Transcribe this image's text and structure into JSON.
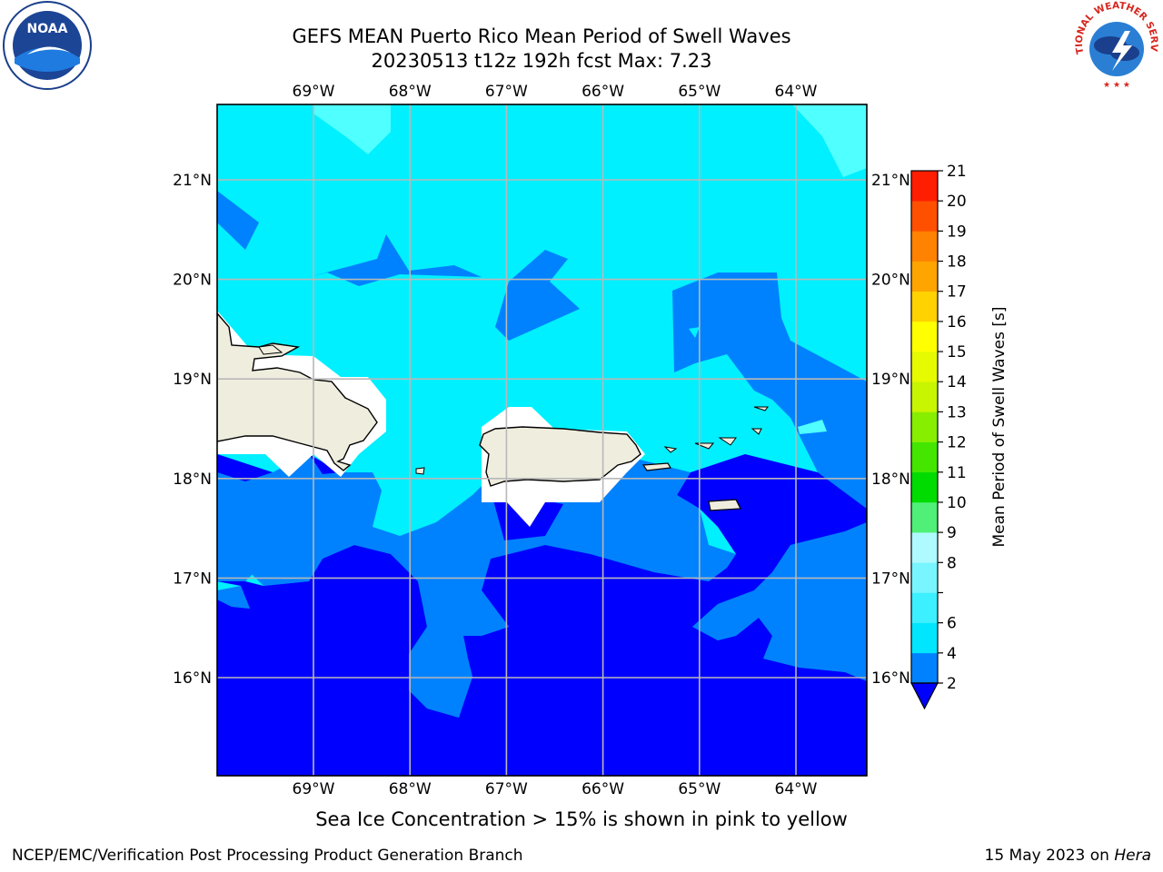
{
  "header": {
    "title_line1": "GEFS MEAN Puerto Rico Mean Period of Swell Waves",
    "title_line2": "20230513 t12z 192h fcst   Max: 7.23"
  },
  "logos": {
    "left": {
      "name": "noaa-logo",
      "text": "NOAA"
    },
    "right": {
      "name": "nws-logo",
      "text": "NATIONAL WEATHER SERVICE"
    }
  },
  "map": {
    "lon_ticks": [
      "69°W",
      "68°W",
      "67°W",
      "66°W",
      "65°W",
      "64°W"
    ],
    "lat_ticks": [
      "21°N",
      "20°N",
      "19°N",
      "18°N",
      "17°N",
      "16°N"
    ],
    "land_color": "#efedde",
    "grid_color": "#b8b8b8"
  },
  "colorbar": {
    "label": "Mean Period of Swell Waves [s]",
    "levels": [
      "2",
      "4",
      "6",
      "7",
      "8",
      "9",
      "10",
      "11",
      "12",
      "13",
      "14",
      "15",
      "16",
      "17",
      "18",
      "19",
      "20",
      "21"
    ],
    "visible_labels": [
      "2",
      "4",
      "6",
      "8",
      "9",
      "10",
      "11",
      "12",
      "13",
      "14",
      "15",
      "16",
      "17",
      "18",
      "19",
      "20",
      "21"
    ],
    "colors": [
      "#0082ff",
      "#00e6ff",
      "#3cf0ff",
      "#78f5ff",
      "#aefaff",
      "#50f078",
      "#00dc00",
      "#44e600",
      "#88ee00",
      "#c8f500",
      "#e6fa00",
      "#ffff00",
      "#ffd200",
      "#ffa500",
      "#ff8200",
      "#ff5000",
      "#ff1e00"
    ],
    "under_color": "#0000ff"
  },
  "field_colors": {
    "deep": "#0000ff",
    "mid": "#0082ff",
    "light": "#00f0ff",
    "lighter": "#50ffff"
  },
  "note": "Sea Ice Concentration > 15% is shown in pink to yellow",
  "footer": {
    "left": "NCEP/EMC/Verification Post Processing Product Generation Branch",
    "right_prefix": "15 May 2023 on ",
    "right_machine": "Hera"
  }
}
